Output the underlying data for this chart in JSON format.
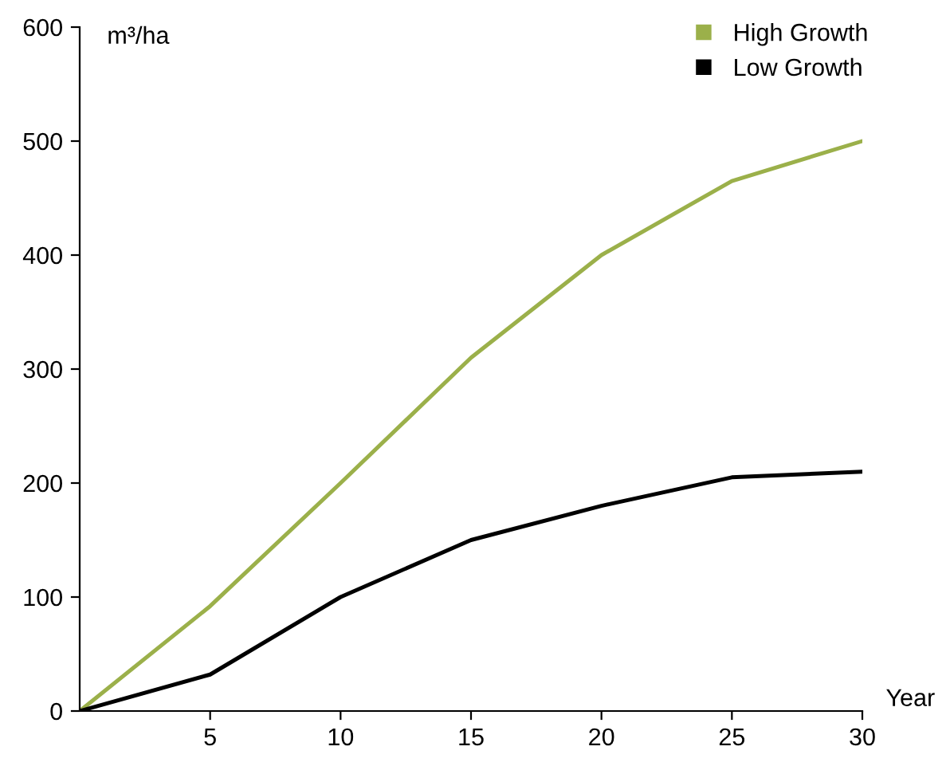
{
  "chart_data": {
    "type": "line",
    "ylabel": "m³/ha",
    "xlabel": "Year",
    "x": [
      0,
      5,
      10,
      15,
      20,
      25,
      30
    ],
    "series": [
      {
        "name": "High Growth",
        "color": "#9bb04a",
        "values": [
          0,
          92,
          200,
          310,
          400,
          465,
          500
        ]
      },
      {
        "name": "Low Growth",
        "color": "#000000",
        "values": [
          0,
          32,
          100,
          150,
          180,
          205,
          210
        ]
      }
    ],
    "xlim": [
      0,
      30
    ],
    "xticks": [
      5,
      10,
      15,
      20,
      25,
      30
    ],
    "ylim": [
      0,
      600
    ],
    "yticks": [
      0,
      100,
      200,
      300,
      400,
      500,
      600
    ],
    "grid": false,
    "legend": "top right",
    "marker": "none",
    "line_style": "solid"
  }
}
